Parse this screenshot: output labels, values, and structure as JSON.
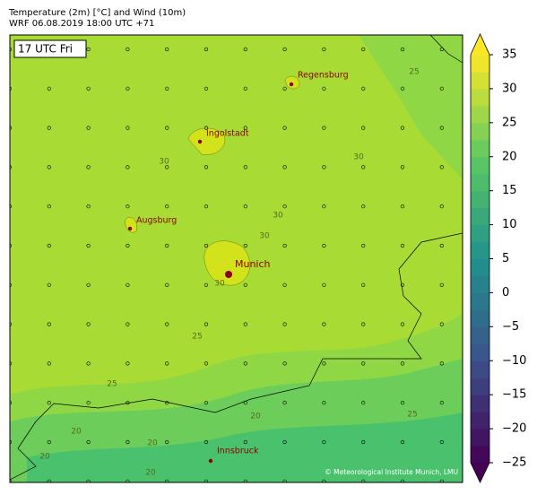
{
  "header": {
    "title": "Temperature (2m) [°C] and Wind (10m)",
    "subtitle": "WRF 06.08.2019 18:00 UTC +71"
  },
  "map": {
    "time_label": "17 UTC Fri",
    "cities": [
      {
        "name": "Regensburg"
      },
      {
        "name": "Ingolstadt"
      },
      {
        "name": "Augsburg"
      },
      {
        "name": "Munich"
      },
      {
        "name": "Innsbruck"
      }
    ],
    "contour_labels": [
      25,
      30,
      30,
      30,
      30,
      30,
      25,
      25,
      20,
      20,
      20,
      20,
      20,
      25
    ],
    "credit": "© Meteorological Institute Munich, LMU"
  },
  "colorbar": {
    "lim": [
      -25,
      35
    ],
    "ticks": [
      35,
      30,
      25,
      20,
      15,
      10,
      5,
      0,
      {
        "value": -5,
        "label": "−5"
      },
      {
        "value": -10,
        "label": "−10"
      },
      {
        "value": -15,
        "label": "−15"
      },
      {
        "value": -20,
        "label": "−20"
      },
      {
        "value": -25,
        "label": "−25"
      }
    ]
  }
}
